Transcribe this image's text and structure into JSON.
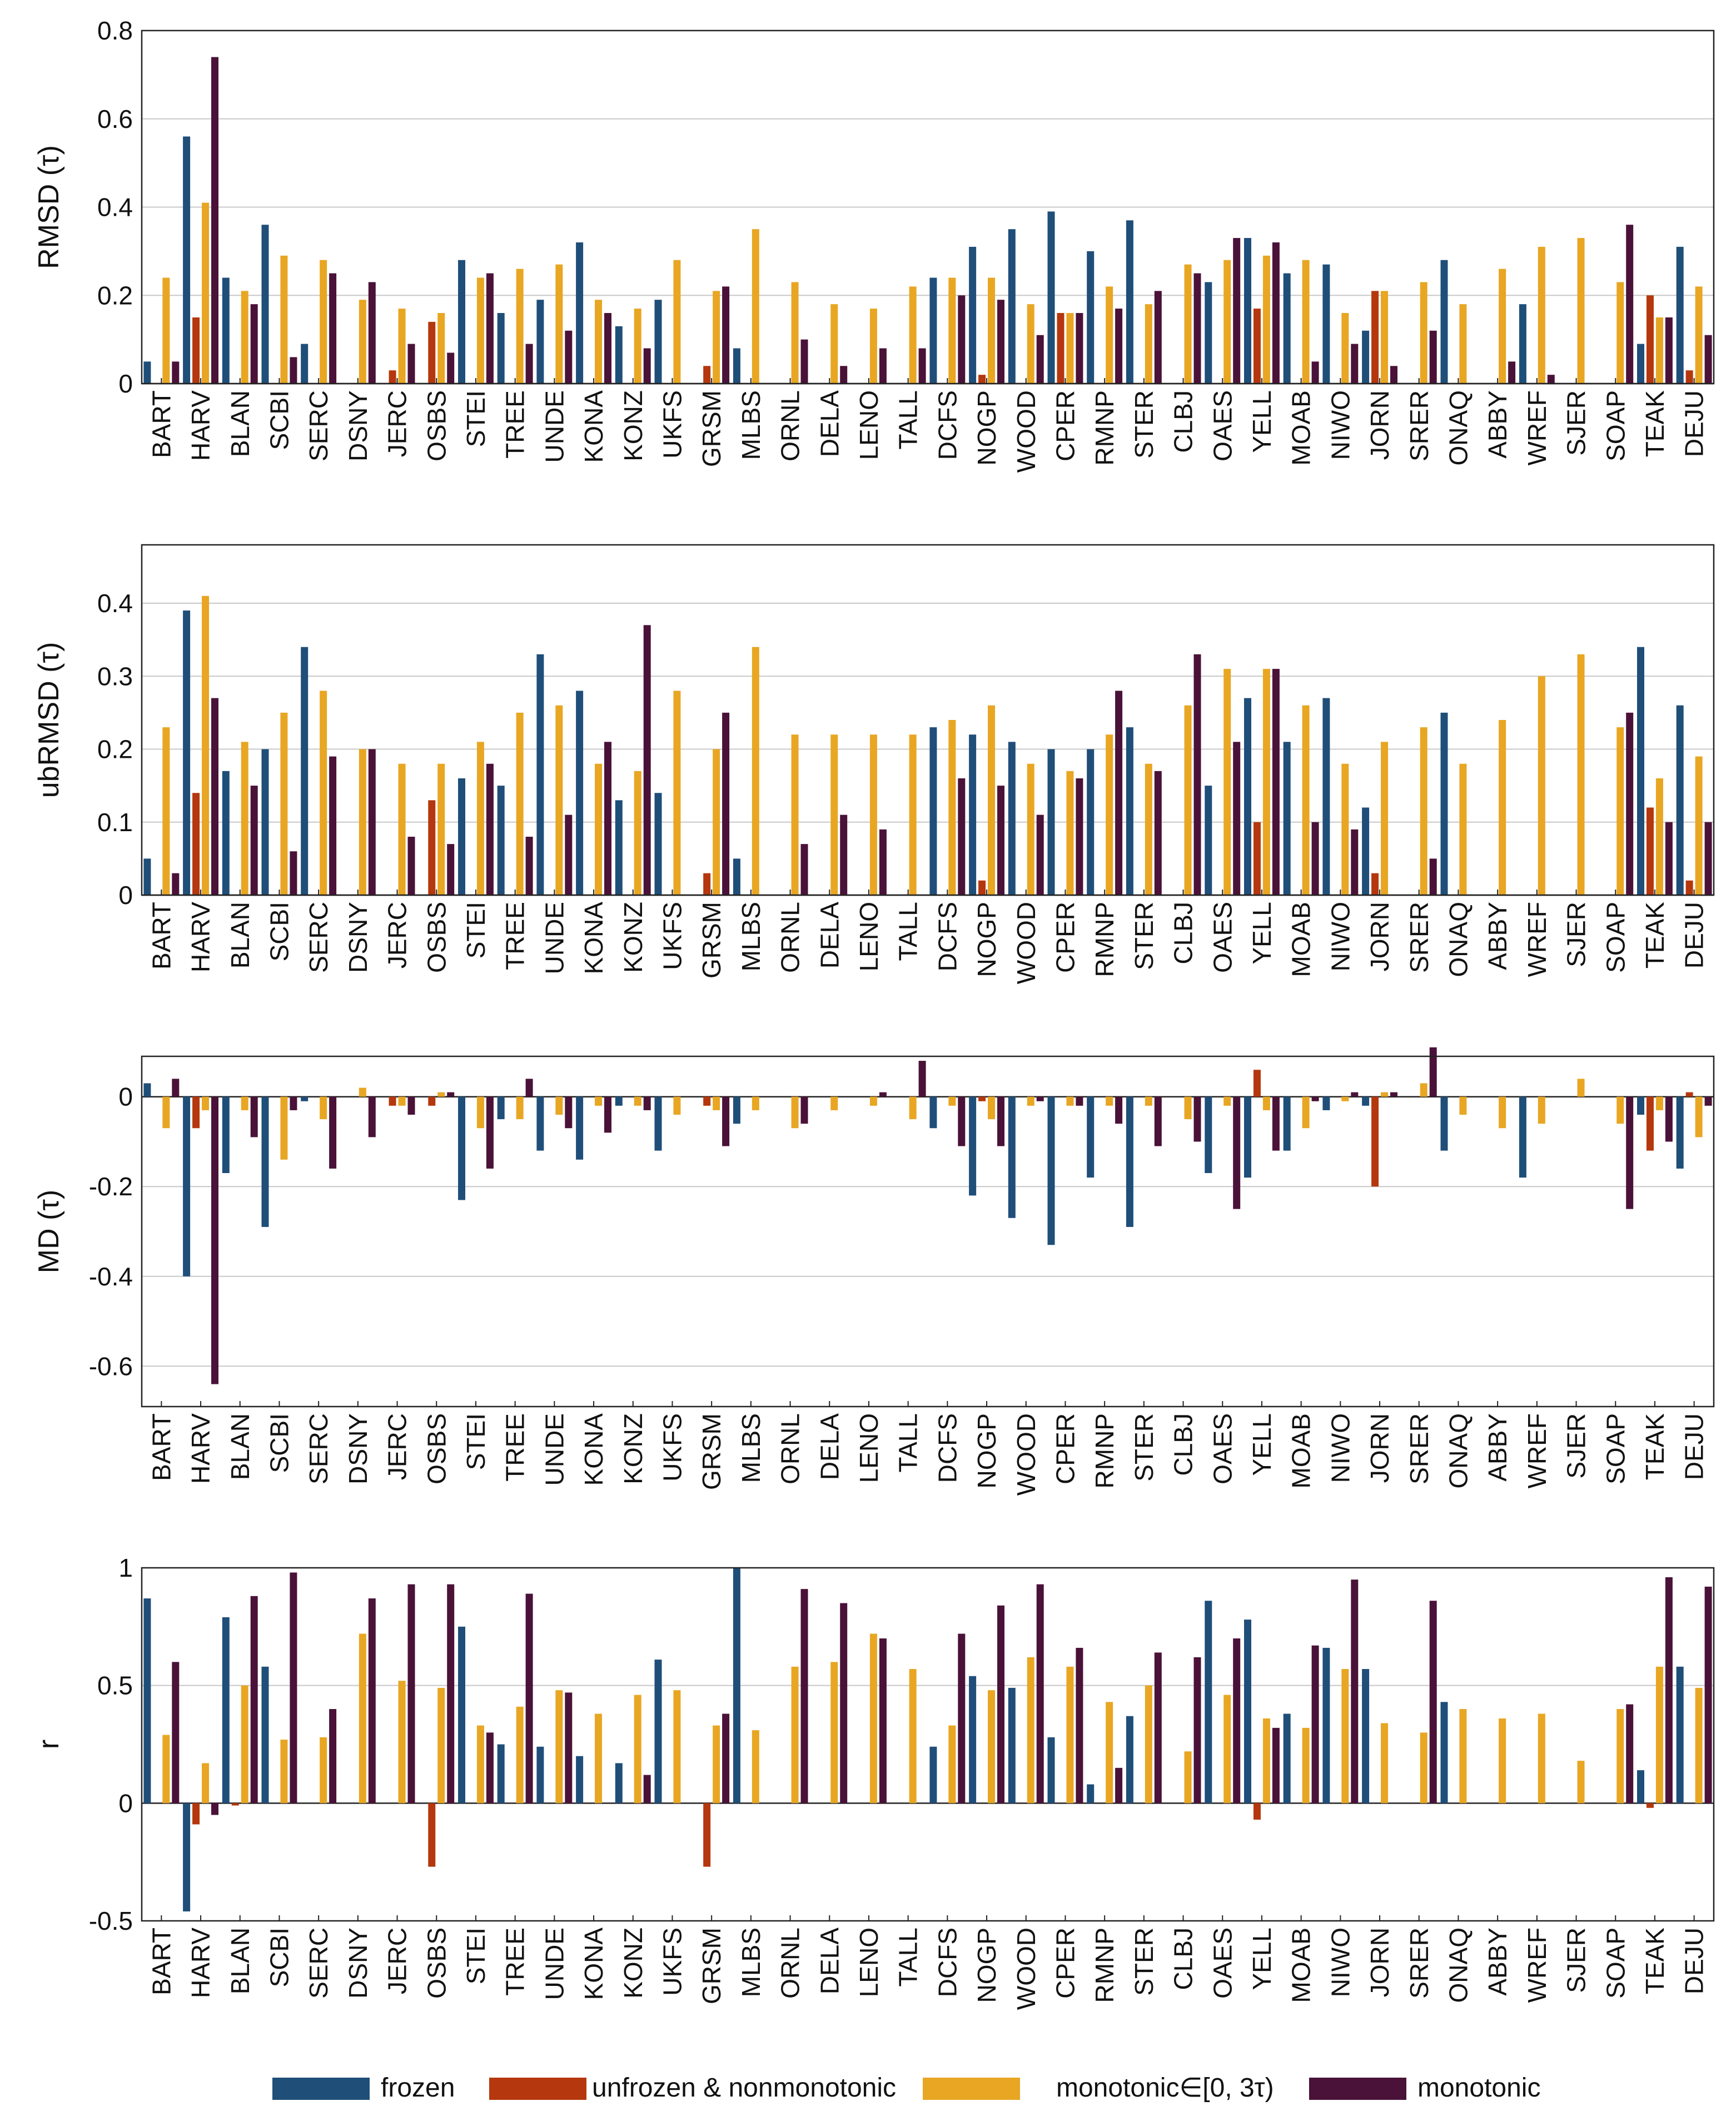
{
  "colors": {
    "frozen": "#1f4e79",
    "unfrozen & nonmonotonic": "#b5370e",
    "monotonic∈[0, 3τ)": "#e8a623",
    "monotonic": "#4a1238",
    "grid": "#c8c8c8",
    "axis": "#222222"
  },
  "chart_data": {
    "type": "bar",
    "categories": [
      "BART",
      "HARV",
      "BLAN",
      "SCBI",
      "SERC",
      "DSNY",
      "JERC",
      "OSBS",
      "STEI",
      "TREE",
      "UNDE",
      "KONA",
      "KONZ",
      "UKFS",
      "GRSM",
      "MLBS",
      "ORNL",
      "DELA",
      "LENO",
      "TALL",
      "DCFS",
      "NOGP",
      "WOOD",
      "CPER",
      "RMNP",
      "STER",
      "CLBJ",
      "OAES",
      "YELL",
      "MOAB",
      "NIWO",
      "JORN",
      "SRER",
      "ONAQ",
      "ABBY",
      "WREF",
      "SJER",
      "SOAP",
      "TEAK",
      "DEJU"
    ],
    "legend": [
      "frozen",
      "unfrozen & nonmonotonic",
      "monotonic∈[0, 3τ)",
      "monotonic"
    ],
    "panels": [
      {
        "ylabel": "RMSD (τ)",
        "ylim": [
          0,
          0.8
        ],
        "yticks": [
          0,
          0.2,
          0.4,
          0.6,
          0.8
        ],
        "ytick_labels": [
          "0",
          "0.2",
          "0.4",
          "0.6",
          "0.8"
        ],
        "series": [
          {
            "name": "frozen",
            "values": [
              0.05,
              0.56,
              0.24,
              0.36,
              0.09,
              null,
              null,
              null,
              0.28,
              0.16,
              0.19,
              0.32,
              0.13,
              0.19,
              null,
              0.08,
              null,
              null,
              null,
              null,
              0.24,
              0.31,
              0.35,
              0.39,
              0.3,
              0.37,
              null,
              0.23,
              0.33,
              0.25,
              0.27,
              0.12,
              null,
              0.28,
              null,
              0.18,
              null,
              null,
              0.09,
              0.31
            ]
          },
          {
            "name": "unfrozen & nonmonotonic",
            "values": [
              null,
              0.15,
              null,
              null,
              null,
              null,
              0.03,
              0.14,
              null,
              null,
              null,
              null,
              null,
              null,
              0.04,
              null,
              null,
              null,
              null,
              null,
              null,
              0.02,
              null,
              0.16,
              null,
              null,
              null,
              null,
              0.17,
              null,
              null,
              0.21,
              null,
              null,
              null,
              null,
              null,
              null,
              0.2,
              0.03
            ]
          },
          {
            "name": "monotonic∈[0, 3τ)",
            "values": [
              0.24,
              0.41,
              0.21,
              0.29,
              0.28,
              0.19,
              0.17,
              0.16,
              0.24,
              0.26,
              0.27,
              0.19,
              0.17,
              0.28,
              0.21,
              0.35,
              0.23,
              0.18,
              0.17,
              0.22,
              0.24,
              0.24,
              0.18,
              0.16,
              0.22,
              0.18,
              0.27,
              0.28,
              0.29,
              0.28,
              0.16,
              0.21,
              0.23,
              0.18,
              0.26,
              0.31,
              0.33,
              0.23,
              0.15,
              0.22
            ]
          },
          {
            "name": "monotonic",
            "values": [
              0.05,
              0.74,
              0.18,
              0.06,
              0.25,
              0.23,
              0.09,
              0.07,
              0.25,
              0.09,
              0.12,
              0.16,
              0.08,
              null,
              0.22,
              null,
              0.1,
              0.04,
              0.08,
              0.08,
              0.2,
              0.19,
              0.11,
              0.16,
              0.17,
              0.21,
              0.25,
              0.33,
              0.32,
              0.05,
              0.09,
              0.04,
              0.12,
              null,
              0.05,
              0.02,
              null,
              0.36,
              0.15,
              0.11
            ]
          }
        ]
      },
      {
        "ylabel": "ubRMSD (τ)",
        "ylim": [
          0,
          0.48
        ],
        "yticks": [
          0,
          0.1,
          0.2,
          0.3,
          0.4
        ],
        "ytick_labels": [
          "0",
          "0.1",
          "0.2",
          "0.3",
          "0.4"
        ],
        "series": [
          {
            "name": "frozen",
            "values": [
              0.05,
              0.39,
              0.17,
              0.2,
              0.34,
              null,
              null,
              null,
              0.16,
              0.15,
              0.33,
              0.28,
              0.13,
              0.14,
              null,
              0.05,
              null,
              null,
              null,
              null,
              0.23,
              0.22,
              0.21,
              0.2,
              0.2,
              0.23,
              null,
              0.15,
              0.27,
              0.21,
              0.27,
              0.12,
              null,
              0.25,
              null,
              null,
              null,
              null,
              0.34,
              0.26
            ]
          },
          {
            "name": "unfrozen & nonmonotonic",
            "values": [
              null,
              0.14,
              null,
              null,
              null,
              null,
              null,
              0.13,
              null,
              null,
              null,
              null,
              null,
              null,
              0.03,
              null,
              null,
              null,
              null,
              null,
              null,
              0.02,
              null,
              null,
              null,
              null,
              null,
              null,
              0.1,
              null,
              null,
              0.03,
              null,
              null,
              null,
              null,
              null,
              null,
              0.12,
              0.02
            ]
          },
          {
            "name": "monotonic∈[0, 3τ)",
            "values": [
              0.23,
              0.41,
              0.21,
              0.25,
              0.28,
              0.2,
              0.18,
              0.18,
              0.21,
              0.25,
              0.26,
              0.18,
              0.17,
              0.28,
              0.2,
              0.34,
              0.22,
              0.22,
              0.22,
              0.22,
              0.24,
              0.26,
              0.18,
              0.17,
              0.22,
              0.18,
              0.26,
              0.31,
              0.31,
              0.26,
              0.18,
              0.21,
              0.23,
              0.18,
              0.24,
              0.3,
              0.33,
              0.23,
              0.16,
              0.19
            ]
          },
          {
            "name": "monotonic",
            "values": [
              0.03,
              0.27,
              0.15,
              0.06,
              0.19,
              0.2,
              0.08,
              0.07,
              0.18,
              0.08,
              0.11,
              0.21,
              0.37,
              null,
              0.25,
              null,
              0.07,
              0.11,
              0.09,
              null,
              0.16,
              0.15,
              0.11,
              0.16,
              0.28,
              0.17,
              0.33,
              0.21,
              0.31,
              0.1,
              0.09,
              null,
              0.05,
              null,
              null,
              null,
              null,
              0.25,
              0.1,
              0.1
            ]
          }
        ]
      },
      {
        "ylabel": "MD (τ)",
        "ylim": [
          -0.69,
          0.09
        ],
        "yticks": [
          -0.6,
          -0.4,
          -0.2,
          0
        ],
        "ytick_labels": [
          "-0.6",
          "-0.4",
          "-0.2",
          "0"
        ],
        "series": [
          {
            "name": "frozen",
            "values": [
              0.03,
              -0.4,
              -0.17,
              -0.29,
              -0.01,
              null,
              null,
              null,
              -0.23,
              -0.05,
              -0.12,
              -0.14,
              -0.02,
              -0.12,
              null,
              -0.06,
              null,
              null,
              null,
              null,
              -0.07,
              -0.22,
              -0.27,
              -0.33,
              -0.18,
              -0.29,
              null,
              -0.17,
              -0.18,
              -0.12,
              -0.03,
              -0.02,
              null,
              -0.12,
              null,
              -0.18,
              null,
              null,
              -0.04,
              -0.16
            ]
          },
          {
            "name": "unfrozen & nonmonotonic",
            "values": [
              null,
              -0.07,
              null,
              null,
              null,
              null,
              -0.02,
              -0.02,
              null,
              null,
              null,
              null,
              null,
              null,
              -0.02,
              null,
              null,
              null,
              null,
              null,
              null,
              -0.01,
              null,
              null,
              null,
              null,
              null,
              null,
              0.06,
              null,
              null,
              -0.2,
              null,
              null,
              null,
              null,
              null,
              null,
              -0.12,
              0.01
            ]
          },
          {
            "name": "monotonic∈[0, 3τ)",
            "values": [
              -0.07,
              -0.03,
              -0.03,
              -0.14,
              -0.05,
              0.02,
              -0.02,
              0.01,
              -0.07,
              -0.05,
              -0.04,
              -0.02,
              -0.02,
              -0.04,
              -0.03,
              -0.03,
              -0.07,
              -0.03,
              -0.02,
              -0.05,
              -0.02,
              -0.05,
              -0.02,
              -0.02,
              -0.02,
              -0.02,
              -0.05,
              -0.02,
              -0.03,
              -0.07,
              -0.01,
              0.01,
              0.03,
              -0.04,
              -0.07,
              -0.06,
              0.04,
              -0.06,
              -0.03,
              -0.09
            ]
          },
          {
            "name": "monotonic",
            "values": [
              0.04,
              -0.64,
              -0.09,
              -0.03,
              -0.16,
              -0.09,
              -0.04,
              0.01,
              -0.16,
              0.04,
              -0.07,
              -0.08,
              -0.03,
              null,
              -0.11,
              null,
              -0.06,
              null,
              0.01,
              0.08,
              -0.11,
              -0.11,
              -0.01,
              -0.02,
              -0.06,
              -0.11,
              -0.1,
              -0.25,
              -0.12,
              -0.01,
              0.01,
              0.01,
              0.11,
              null,
              null,
              null,
              null,
              -0.25,
              -0.1,
              -0.02
            ]
          }
        ]
      },
      {
        "ylabel": "r",
        "ylim": [
          -0.5,
          1.0
        ],
        "yticks": [
          -0.5,
          0,
          0.5,
          1
        ],
        "ytick_labels": [
          "-0.5",
          "0",
          "0.5",
          "1"
        ],
        "series": [
          {
            "name": "frozen",
            "values": [
              0.87,
              -0.46,
              0.79,
              0.58,
              null,
              null,
              null,
              null,
              0.75,
              0.25,
              0.24,
              0.2,
              0.17,
              0.61,
              null,
              1.0,
              null,
              null,
              null,
              null,
              0.24,
              0.54,
              0.49,
              0.28,
              0.08,
              0.37,
              null,
              0.86,
              0.78,
              0.38,
              0.66,
              0.57,
              null,
              0.43,
              null,
              null,
              null,
              null,
              0.14,
              0.58
            ]
          },
          {
            "name": "unfrozen & nonmonotonic",
            "values": [
              null,
              -0.09,
              -0.01,
              null,
              null,
              null,
              null,
              -0.27,
              null,
              null,
              null,
              null,
              null,
              null,
              -0.27,
              null,
              null,
              null,
              null,
              null,
              null,
              null,
              null,
              null,
              null,
              null,
              null,
              null,
              -0.07,
              null,
              null,
              null,
              null,
              null,
              null,
              null,
              null,
              null,
              -0.02,
              null
            ]
          },
          {
            "name": "monotonic∈[0, 3τ)",
            "values": [
              0.29,
              0.17,
              0.5,
              0.27,
              0.28,
              0.72,
              0.52,
              0.49,
              0.33,
              0.41,
              0.48,
              0.38,
              0.46,
              0.48,
              0.33,
              0.31,
              0.58,
              0.6,
              0.72,
              0.57,
              0.33,
              0.48,
              0.62,
              0.58,
              0.43,
              0.5,
              0.22,
              0.46,
              0.36,
              0.32,
              0.57,
              0.34,
              0.3,
              0.4,
              0.36,
              0.38,
              0.18,
              0.4,
              0.58,
              0.49
            ]
          },
          {
            "name": "monotonic",
            "values": [
              0.6,
              -0.05,
              0.88,
              0.98,
              0.4,
              0.87,
              0.93,
              0.93,
              0.3,
              0.89,
              0.47,
              null,
              0.12,
              null,
              0.38,
              null,
              0.91,
              0.85,
              0.7,
              null,
              0.72,
              0.84,
              0.93,
              0.66,
              0.15,
              0.64,
              0.62,
              0.7,
              0.32,
              0.67,
              0.95,
              null,
              0.86,
              null,
              null,
              null,
              null,
              0.42,
              0.96,
              0.92
            ]
          }
        ]
      }
    ]
  }
}
